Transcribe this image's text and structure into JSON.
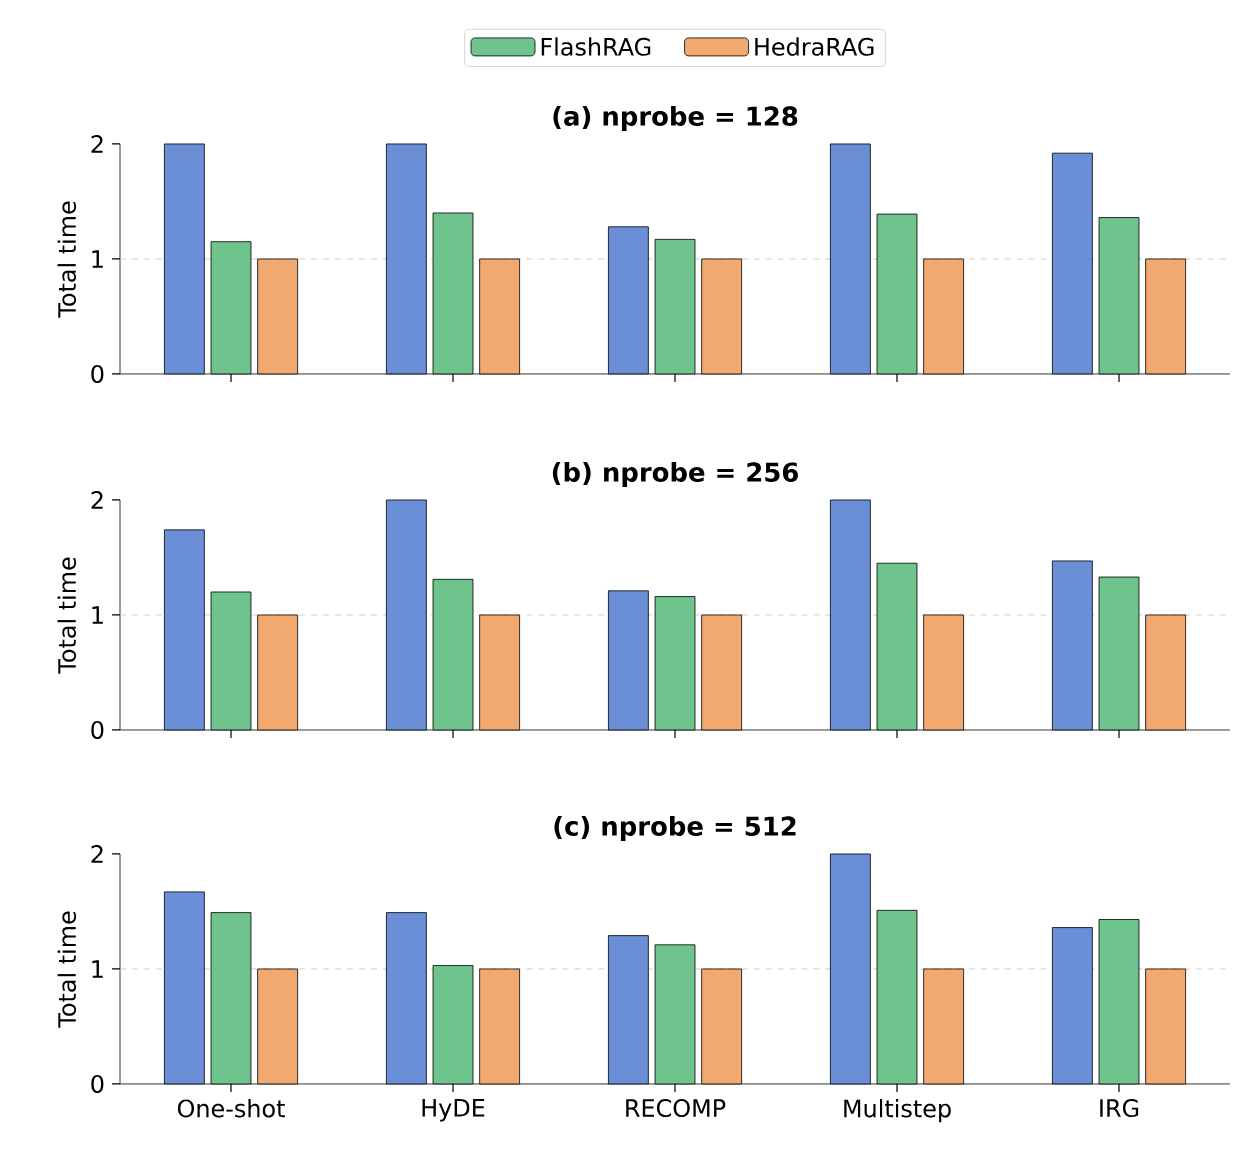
{
  "chart_data": [
    {
      "type": "bar",
      "title": "(a) nprobe = 128",
      "ylabel": "Total time",
      "categories": [
        null,
        null,
        null,
        null,
        null
      ],
      "ylim": [
        0,
        2
      ],
      "yticks": [
        0,
        1,
        2
      ],
      "legend": "top",
      "tick_labels": "y",
      "ref_lines": [
        {
          "axis": "y",
          "value": 1,
          "color": "#c0c0c0",
          "line_style": "dashed"
        }
      ],
      "series": [
        {
          "color": "#6a8fd6",
          "values": [
            2,
            2,
            1.28,
            2,
            1.92
          ]
        },
        {
          "name": "FlashRAG",
          "color": "#6fc38d",
          "values": [
            1.15,
            1.4,
            1.17,
            1.39,
            1.36
          ]
        },
        {
          "name": "HedraRAG",
          "color": "#f2a96f",
          "values": [
            1,
            1,
            1,
            1,
            1
          ]
        }
      ]
    },
    {
      "type": "bar",
      "title": "(b) nprobe = 256",
      "ylabel": "Total time",
      "categories": [
        null,
        null,
        null,
        null,
        null
      ],
      "ylim": [
        0,
        2
      ],
      "yticks": [
        0,
        1,
        2
      ],
      "tick_labels": "y",
      "ref_lines": [
        {
          "axis": "y",
          "value": 1,
          "color": "#c0c0c0",
          "line_style": "dashed"
        }
      ],
      "series": [
        {
          "color": "#6a8fd6",
          "values": [
            1.74,
            2,
            1.21,
            2,
            1.47
          ]
        },
        {
          "color": "#6fc38d",
          "values": [
            1.2,
            1.31,
            1.16,
            1.45,
            1.33
          ]
        },
        {
          "color": "#f2a96f",
          "values": [
            1,
            1,
            1,
            1,
            1
          ]
        }
      ]
    },
    {
      "type": "bar",
      "title": "(c) nprobe = 512",
      "ylabel": "Total time",
      "categories": [
        "One-shot",
        "HyDE",
        "RECOMP",
        "Multistep",
        "IRG"
      ],
      "ylim": [
        0,
        2
      ],
      "yticks": [
        0,
        1,
        2
      ],
      "ref_lines": [
        {
          "axis": "y",
          "value": 1,
          "color": "#c0c0c0",
          "line_style": "dashed"
        }
      ],
      "series": [
        {
          "color": "#6a8fd6",
          "values": [
            1.67,
            1.49,
            1.29,
            2,
            1.36
          ]
        },
        {
          "color": "#6fc38d",
          "values": [
            1.49,
            1.03,
            1.21,
            1.51,
            1.43
          ]
        },
        {
          "color": "#f2a96f",
          "values": [
            1,
            1,
            1,
            1,
            1
          ]
        }
      ]
    }
  ]
}
